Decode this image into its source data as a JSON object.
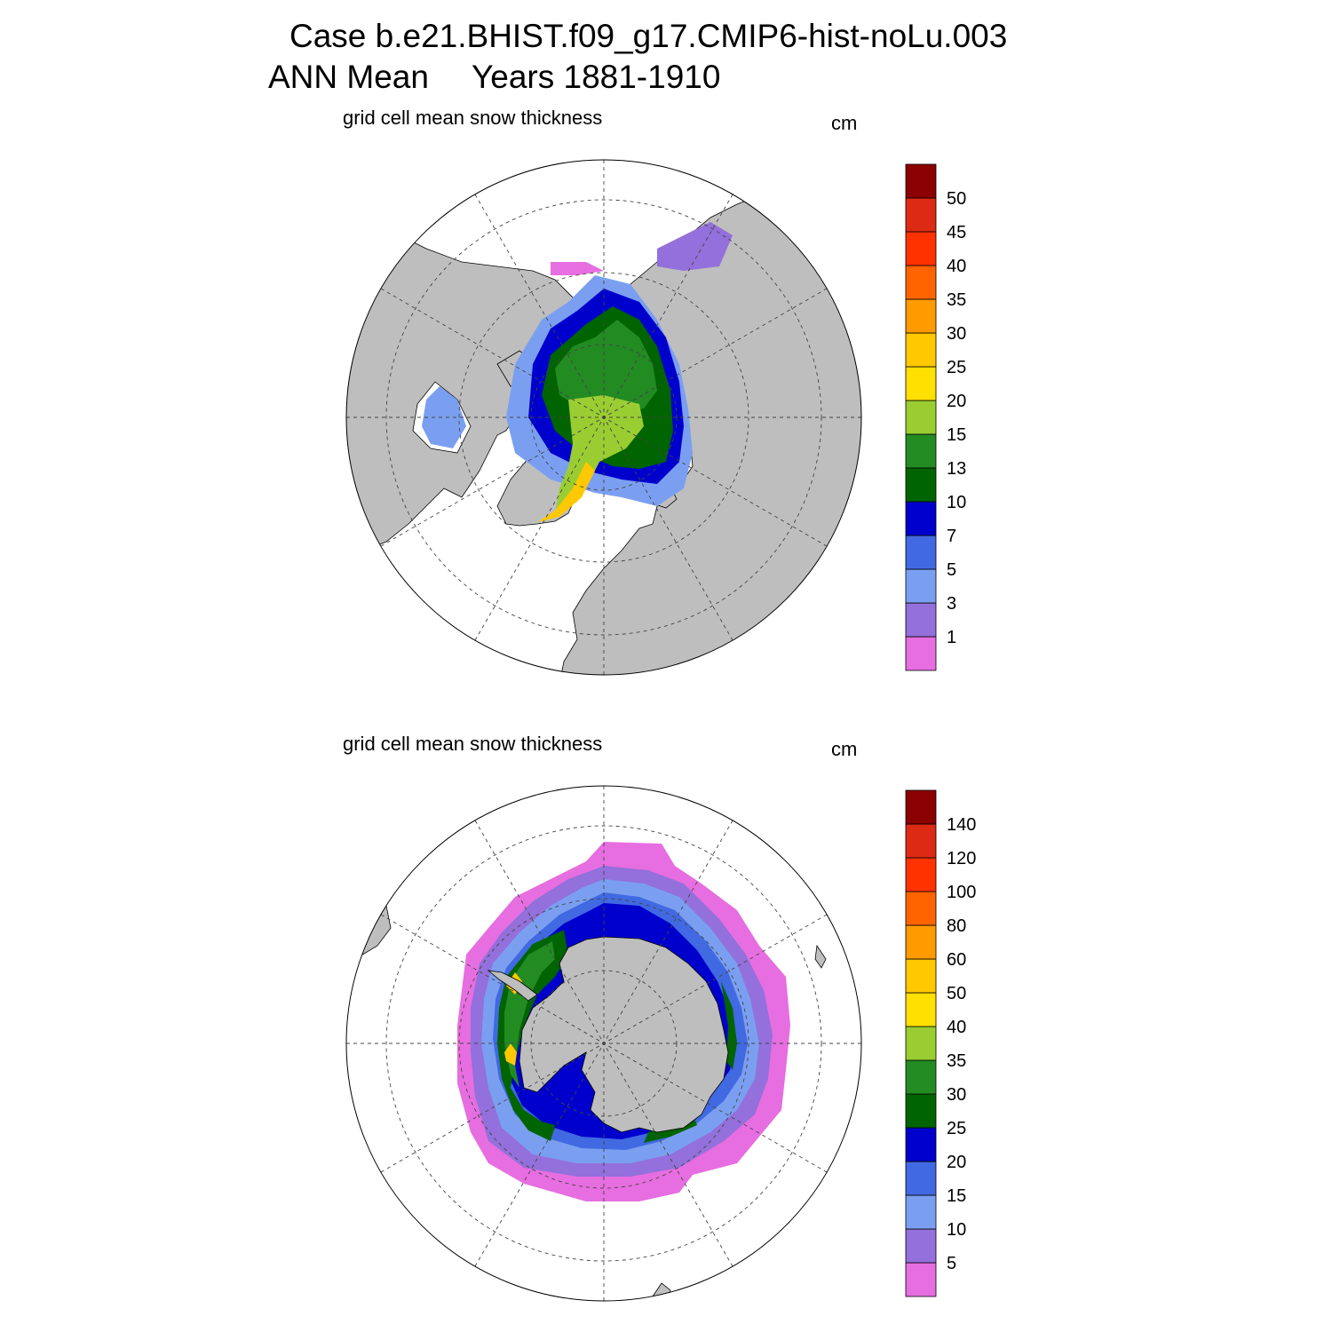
{
  "header": {
    "case_line": "Case b.e21.BHIST.f09_g17.CMIP6-hist-noLu.003",
    "period": "ANN Mean",
    "years": "Years 1881-1910"
  },
  "colors": {
    "land": "#bebebe",
    "ocean": "#ffffff",
    "palette": [
      "#e66ee0",
      "#9370db",
      "#7b9ff0",
      "#4169e1",
      "#0000cd",
      "#006400",
      "#228b22",
      "#9acd32",
      "#ffe000",
      "#ffc800",
      "#ff9a00",
      "#ff6400",
      "#ff3200",
      "#dc2a14",
      "#8b0000"
    ]
  },
  "panels": [
    {
      "id": "north",
      "title": "grid cell mean snow thickness",
      "unit": "cm",
      "hemisphere": "Northern",
      "levels": [
        1,
        3,
        5,
        7,
        10,
        13,
        15,
        20,
        25,
        30,
        35,
        40,
        45,
        50
      ]
    },
    {
      "id": "south",
      "title": "grid cell mean snow thickness",
      "unit": "cm",
      "hemisphere": "Southern",
      "levels": [
        5,
        10,
        15,
        20,
        25,
        30,
        35,
        40,
        50,
        60,
        80,
        100,
        120,
        140
      ]
    }
  ]
}
